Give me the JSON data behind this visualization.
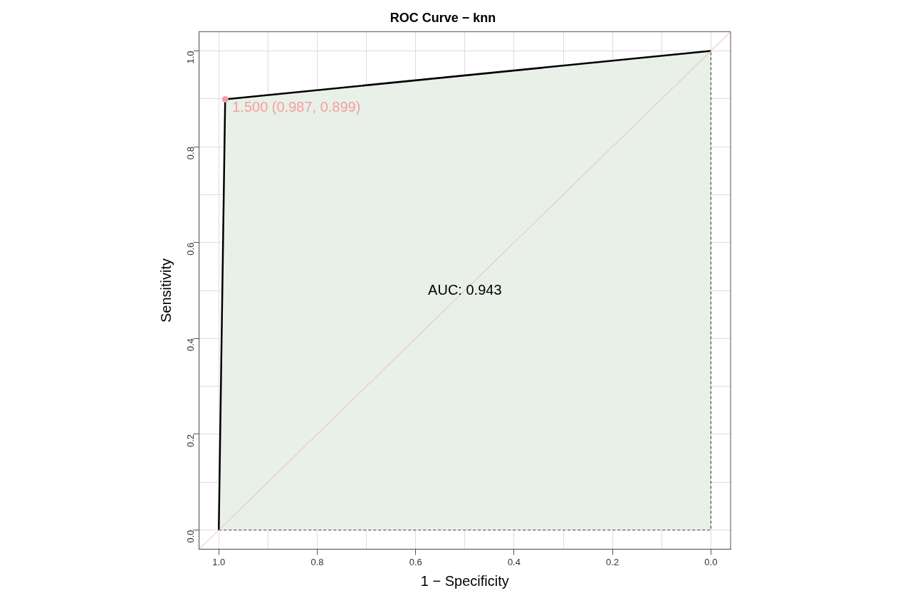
{
  "chart_data": {
    "type": "line",
    "title": "ROC Curve − knn",
    "xlabel": "1 − Specificity",
    "ylabel": "Sensitivity",
    "xlim": [
      1.04,
      -0.04
    ],
    "ylim": [
      -0.04,
      1.04
    ],
    "xticks": [
      {
        "value": 0,
        "label": "0.0"
      },
      {
        "value": 0.1,
        "label": null
      },
      0.2,
      {
        "value": 0.3,
        "label": null
      },
      0.4,
      {
        "value": 0.5,
        "label": null
      },
      0.6,
      {
        "value": 0.7,
        "label": null
      },
      0.8,
      {
        "value": 0.9,
        "label": null
      },
      {
        "value": 1,
        "label": "1.0"
      }
    ],
    "yticks": [
      {
        "value": 0,
        "label": "0.0"
      },
      {
        "value": 0.1,
        "label": null
      },
      0.2,
      {
        "value": 0.3,
        "label": null
      },
      0.4,
      {
        "value": 0.5,
        "label": null
      },
      0.6,
      {
        "value": 0.7,
        "label": null
      },
      0.8,
      {
        "value": 0.9,
        "label": null
      },
      {
        "value": 1,
        "label": "1.0"
      }
    ],
    "grid": true,
    "legend": false,
    "series": [
      {
        "color": "#000000",
        "x": [
          1,
          0.987,
          0
        ],
        "values": [
          0,
          0.899,
          1
        ]
      },
      {
        "color": "#f0b0b0",
        "x": [
          1.04,
          -0.04
        ],
        "values": [
          -0.04,
          1.04
        ]
      },
      {
        "type": "scatter",
        "color": "#f4a0a0",
        "x": [
          0.987
        ],
        "values": [
          0.899
        ]
      }
    ],
    "annotations": [
      {
        "text": "1.500 (0.987, 0.899)",
        "x": 0.987,
        "y": 0.899
      },
      "AUC: 0.943"
    ]
  }
}
